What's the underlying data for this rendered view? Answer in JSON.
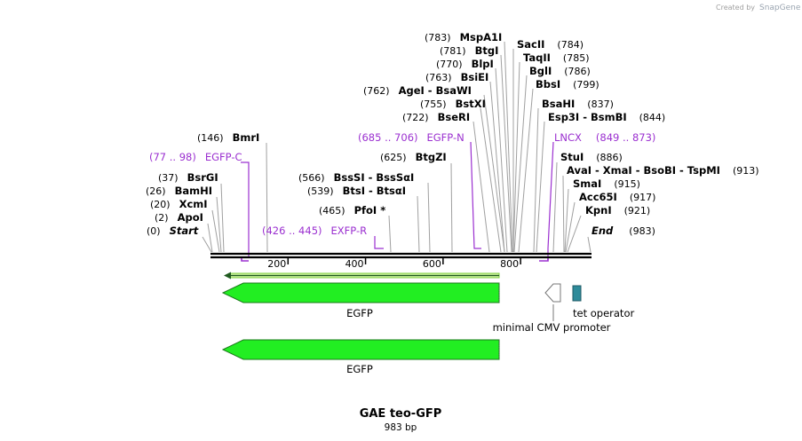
{
  "credit": {
    "prefix": "Created by",
    "brand": "SnapGene"
  },
  "map": {
    "title": "GAE teo-GFP",
    "length": "983 bp",
    "total_bp": 983
  },
  "enzymes_left": [
    {
      "pos": "(146)",
      "name": "BmrI",
      "bp": 146
    },
    {
      "pos": "(37)",
      "name": "BsrGI",
      "bp": 37
    },
    {
      "pos": "(26)",
      "name": "BamHI",
      "bp": 26
    },
    {
      "pos": "(20)",
      "name": "XcmI",
      "bp": 20
    },
    {
      "pos": "(2)",
      "name": "ApoI",
      "bp": 2
    },
    {
      "pos": "(0)",
      "name": "Start",
      "bp": 0
    }
  ],
  "enzymes_mid": [
    {
      "pos": "(625)",
      "name": "BtgZI",
      "bp": 625
    },
    {
      "pos": "(566)",
      "name": "BssSI  -  BssSαI",
      "bp": 566
    },
    {
      "pos": "(539)",
      "name": "BtsI  -  BtsαI",
      "bp": 539
    },
    {
      "pos": "(465)",
      "name": "PfoI *",
      "bp": 465
    }
  ],
  "enzymes_top": [
    {
      "pos": "(783)",
      "name": "MspA1I",
      "bp": 783
    },
    {
      "pos": "(781)",
      "name": "BtgI",
      "bp": 781
    },
    {
      "pos": "(770)",
      "name": "BlpI",
      "bp": 770
    },
    {
      "pos": "(763)",
      "name": "BsiEI",
      "bp": 763
    },
    {
      "pos": "(762)",
      "name": "AgeI  -  BsaWI",
      "bp": 762
    },
    {
      "pos": "(755)",
      "name": "BstXI",
      "bp": 755
    },
    {
      "pos": "(722)",
      "name": "BseRI",
      "bp": 722
    }
  ],
  "enzymes_right": [
    {
      "pos": "(784)",
      "name": "SacII",
      "bp": 784
    },
    {
      "pos": "(785)",
      "name": "TaqII",
      "bp": 785
    },
    {
      "pos": "(786)",
      "name": "BglI",
      "bp": 786
    },
    {
      "pos": "(799)",
      "name": "BbsI",
      "bp": 799
    },
    {
      "pos": "(837)",
      "name": "BsaHI",
      "bp": 837
    },
    {
      "pos": "(844)",
      "name": "Esp3I  -  BsmBI",
      "bp": 844
    },
    {
      "pos": "(886)",
      "name": "StuI",
      "bp": 886
    },
    {
      "pos": "(913)",
      "name": "AvaI  -  XmaI  -  BsoBI  -  TspMI",
      "bp": 913
    },
    {
      "pos": "(915)",
      "name": "SmaI",
      "bp": 915
    },
    {
      "pos": "(917)",
      "name": "Acc65I",
      "bp": 917
    },
    {
      "pos": "(921)",
      "name": "KpnI",
      "bp": 921
    },
    {
      "pos": "(983)",
      "name": "End",
      "bp": 983
    }
  ],
  "primers": [
    {
      "name": "EGFP-C",
      "range": "(77 .. 98)",
      "start": 77,
      "end": 98
    },
    {
      "name": "EXFP-R",
      "range": "(426 .. 445)",
      "start": 426,
      "end": 445
    },
    {
      "name": "EGFP-N",
      "range": "(685 .. 706)",
      "start": 685,
      "end": 706
    },
    {
      "name": "LNCX",
      "range": "(849 .. 873)",
      "start": 849,
      "end": 873
    }
  ],
  "ruler": {
    "ticks": [
      "200",
      "400",
      "600",
      "800"
    ],
    "tick_bp": [
      200,
      400,
      600,
      800
    ]
  },
  "features": [
    {
      "name": "EGFP",
      "start": 32,
      "end": 751,
      "direction": "reverse",
      "color": "#22ee22"
    },
    {
      "name": "minimal CMV promoter",
      "start": 861,
      "end": 900,
      "direction": "reverse",
      "color": "#ffffff"
    },
    {
      "name": "tet operator",
      "start": 935,
      "end": 953,
      "direction": "none",
      "color": "#2e8b9a"
    },
    {
      "name": "EGFP",
      "start": 32,
      "end": 751,
      "direction": "reverse",
      "color": "#22ee22"
    }
  ],
  "orf_arrow": {
    "start": 32,
    "end": 751,
    "direction": "reverse",
    "color": "#7fd040"
  }
}
